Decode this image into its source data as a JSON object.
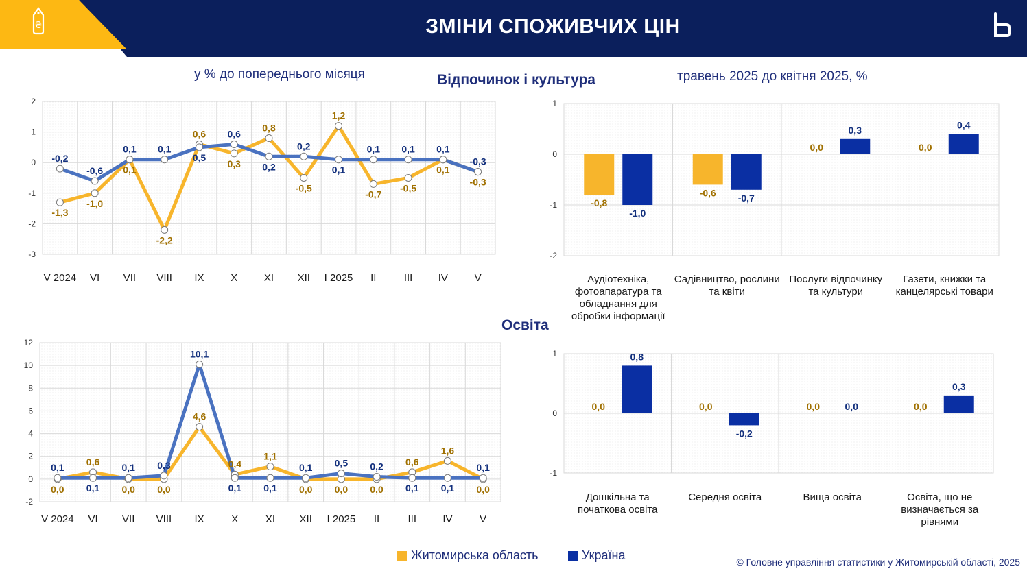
{
  "header": {
    "title": "ЗМІНИ СПОЖИВЧИХ ЦІН",
    "colors": {
      "band": "#0B1F5C",
      "accent": "#FDB813"
    },
    "left_icon": "price-tag-icon",
    "right_icon": "logo-b-icon"
  },
  "subtitles": {
    "left": "у % до попереднього місяця",
    "right": "травень 2025 до квітня 2025, %"
  },
  "sections": {
    "recreation": "Відпочинок і культура",
    "education": "Освіта"
  },
  "legend": {
    "region": "Житомирська область",
    "ukraine": "Україна"
  },
  "colors": {
    "region": "#F7B52C",
    "ukraine_line": "#4A72C0",
    "ukraine_bar": "#0A2FA3",
    "region_label": "#A07000",
    "ukraine_label": "#13307D"
  },
  "copyright": "© Головне управління статистики у Житомирській області, 2025",
  "chart_data": [
    {
      "type": "line",
      "categories": [
        "V 2024",
        "VI",
        "VII",
        "VIII",
        "IX",
        "X",
        "XI",
        "XII",
        "I 2025",
        "II",
        "III",
        "IV",
        "V"
      ],
      "ylim": [
        -3,
        2
      ],
      "yticks": [
        -3,
        -2,
        -1,
        0,
        1,
        2
      ],
      "series": [
        {
          "name": "Житомирська область",
          "values": [
            -1.3,
            -1.0,
            0.1,
            -2.2,
            0.6,
            0.3,
            0.8,
            -0.5,
            1.2,
            -0.7,
            -0.5,
            0.1,
            -0.3
          ],
          "labels": [
            "-1,3",
            "-1,0",
            "0,1",
            "-2,2",
            "0,6",
            "0,3",
            "0,8",
            "-0,5",
            "1,2",
            "-0,7",
            "-0,5",
            "0,1",
            "-0,3"
          ]
        },
        {
          "name": "Україна",
          "values": [
            -0.2,
            -0.6,
            0.1,
            0.1,
            0.5,
            0.6,
            0.2,
            0.2,
            0.1,
            0.1,
            0.1,
            0.1,
            -0.3
          ],
          "labels": [
            "-0,2",
            "-0,6",
            "0,1",
            "0,1",
            "0,5",
            "0,6",
            "0,2",
            "0,2",
            "0,1",
            "0,1",
            "0,1",
            "0,1",
            "-0,3"
          ]
        }
      ]
    },
    {
      "type": "bar",
      "categories": [
        "Аудіотехніка, фотоапаратура та обладнання для обробки інформації",
        "Садівництво, рослини та квіти",
        "Послуги відпочинку та культури",
        "Газети, книжки та канцелярські товари"
      ],
      "ylim": [
        -2,
        1
      ],
      "yticks": [
        -2,
        -1,
        0,
        1
      ],
      "series": [
        {
          "name": "Житомирська область",
          "values": [
            -0.8,
            -0.6,
            0.0,
            0.0
          ],
          "labels": [
            "-0,8",
            "-0,6",
            "0,0",
            "0,0"
          ]
        },
        {
          "name": "Україна",
          "values": [
            -1.0,
            -0.7,
            0.3,
            0.4
          ],
          "labels": [
            "-1,0",
            "-0,7",
            "0,3",
            "0,4"
          ]
        }
      ]
    },
    {
      "type": "line",
      "categories": [
        "V 2024",
        "VI",
        "VII",
        "VIII",
        "IX",
        "X",
        "XI",
        "XII",
        "I 2025",
        "II",
        "III",
        "IV",
        "V"
      ],
      "ylim": [
        -2,
        12
      ],
      "yticks": [
        -2,
        0,
        2,
        4,
        6,
        8,
        10,
        12
      ],
      "series": [
        {
          "name": "Житомирська область",
          "values": [
            0.0,
            0.6,
            0.0,
            0.0,
            4.6,
            0.4,
            1.1,
            0.0,
            0.0,
            0.0,
            0.6,
            1.6,
            0.0
          ],
          "labels": [
            "0,0",
            "0,6",
            "0,0",
            "0,0",
            "4,6",
            "0,4",
            "1,1",
            "0,0",
            "0,0",
            "0,0",
            "0,6",
            "1,6",
            "0,0"
          ]
        },
        {
          "name": "Україна",
          "values": [
            0.1,
            0.1,
            0.1,
            0.3,
            10.1,
            0.1,
            0.1,
            0.1,
            0.5,
            0.2,
            0.1,
            0.1,
            0.1
          ],
          "labels": [
            "0,1",
            "0,1",
            "0,1",
            "0,3",
            "10,1",
            "0,1",
            "0,1",
            "0,1",
            "0,5",
            "0,2",
            "0,1",
            "0,1",
            "0,1"
          ]
        }
      ]
    },
    {
      "type": "bar",
      "categories": [
        "Дошкільна та початкова освіта",
        "Середня освіта",
        "Вища освіта",
        "Освіта, що не визначається за рівнями"
      ],
      "ylim": [
        -1,
        1
      ],
      "yticks": [
        -1,
        0,
        1
      ],
      "series": [
        {
          "name": "Житомирська область",
          "values": [
            0.0,
            0.0,
            0.0,
            0.0
          ],
          "labels": [
            "0,0",
            "0,0",
            "0,0",
            "0,0"
          ]
        },
        {
          "name": "Україна",
          "values": [
            0.8,
            -0.2,
            0.0,
            0.3
          ],
          "labels": [
            "0,8",
            "-0,2",
            "0,0",
            "0,3"
          ]
        }
      ]
    }
  ]
}
